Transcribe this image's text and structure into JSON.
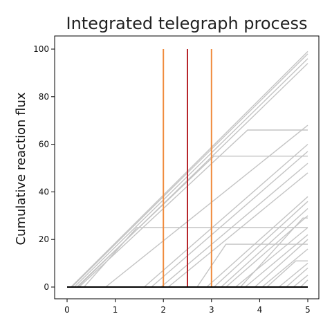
{
  "chart_data": {
    "type": "line",
    "title": "Integrated telegraph process",
    "xlabel": "",
    "ylabel": "Cumulative reaction flux",
    "xlim": [
      -0.25,
      5.0
    ],
    "ylim": [
      -5,
      104
    ],
    "xticks": [
      0,
      1,
      2,
      3,
      4,
      5
    ],
    "yticks": [
      0,
      20,
      40,
      60,
      80,
      100
    ],
    "grid": false,
    "colors": {
      "trajectory": "#c4c4c4",
      "baseline": "#000000",
      "marker_outer": "#f08a3c",
      "marker_middle": "#b7262b"
    },
    "baseline": {
      "x": [
        0,
        5
      ],
      "y": [
        0,
        0
      ]
    },
    "vertical_markers": [
      {
        "x": 2.0,
        "color": "#f08a3c"
      },
      {
        "x": 2.5,
        "color": "#b7262b"
      },
      {
        "x": 3.0,
        "color": "#f08a3c"
      }
    ],
    "series": [
      {
        "x": [
          0.08,
          5.0
        ],
        "y": [
          0,
          99
        ]
      },
      {
        "x": [
          0.1,
          5.0
        ],
        "y": [
          0,
          98
        ]
      },
      {
        "x": [
          0.15,
          5.0
        ],
        "y": [
          0,
          96
        ]
      },
      {
        "x": [
          0.22,
          5.0
        ],
        "y": [
          0,
          94
        ]
      },
      {
        "x": [
          0.25,
          3.75,
          5.0
        ],
        "y": [
          0,
          66,
          66
        ]
      },
      {
        "x": [
          0.2,
          3.05,
          5.0
        ],
        "y": [
          0,
          55,
          55
        ]
      },
      {
        "x": [
          0.35,
          1.45,
          5.0
        ],
        "y": [
          0,
          25,
          25
        ]
      },
      {
        "x": [
          0.8,
          5.0
        ],
        "y": [
          0,
          68
        ]
      },
      {
        "x": [
          1.6,
          5.0
        ],
        "y": [
          0,
          60
        ]
      },
      {
        "x": [
          1.75,
          5.0
        ],
        "y": [
          0,
          57
        ]
      },
      {
        "x": [
          1.95,
          5.0
        ],
        "y": [
          0,
          52
        ]
      },
      {
        "x": [
          2.1,
          5.0
        ],
        "y": [
          0,
          48
        ]
      },
      {
        "x": [
          2.9,
          5.0
        ],
        "y": [
          0,
          38
        ]
      },
      {
        "x": [
          3.05,
          5.0
        ],
        "y": [
          0,
          36
        ]
      },
      {
        "x": [
          3.2,
          5.0
        ],
        "y": [
          0,
          33
        ]
      },
      {
        "x": [
          3.3,
          5.0
        ],
        "y": [
          0,
          30
        ]
      },
      {
        "x": [
          3.5,
          5.0
        ],
        "y": [
          0,
          25
        ]
      },
      {
        "x": [
          3.6,
          4.9,
          5.0
        ],
        "y": [
          0,
          29,
          29
        ]
      },
      {
        "x": [
          3.7,
          5.0
        ],
        "y": [
          0,
          22
        ]
      },
      {
        "x": [
          2.7,
          3.3,
          5.0
        ],
        "y": [
          0,
          18,
          18
        ]
      },
      {
        "x": [
          3.9,
          5.0
        ],
        "y": [
          0,
          20
        ]
      },
      {
        "x": [
          4.05,
          5.0
        ],
        "y": [
          0,
          16
        ]
      },
      {
        "x": [
          4.15,
          4.75,
          5.0
        ],
        "y": [
          0,
          11,
          11
        ]
      },
      {
        "x": [
          4.4,
          5.0
        ],
        "y": [
          0,
          10
        ]
      },
      {
        "x": [
          4.55,
          5.0
        ],
        "y": [
          0,
          8
        ]
      },
      {
        "x": [
          4.7,
          5.0
        ],
        "y": [
          0,
          5
        ]
      },
      {
        "x": [
          4.85,
          5.0
        ],
        "y": [
          0,
          3
        ]
      }
    ]
  }
}
